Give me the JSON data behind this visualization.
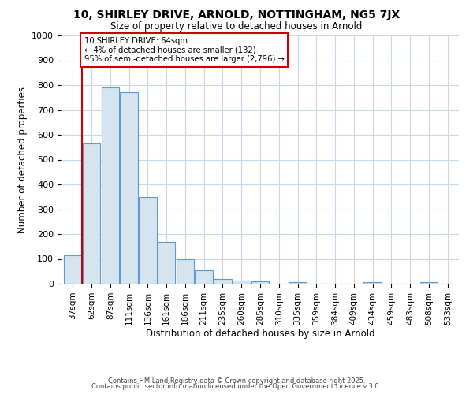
{
  "title_line1": "10, SHIRLEY DRIVE, ARNOLD, NOTTINGHAM, NG5 7JX",
  "title_line2": "Size of property relative to detached houses in Arnold",
  "xlabel": "Distribution of detached houses by size in Arnold",
  "ylabel": "Number of detached properties",
  "categories": [
    "37sqm",
    "62sqm",
    "87sqm",
    "111sqm",
    "136sqm",
    "161sqm",
    "186sqm",
    "211sqm",
    "235sqm",
    "260sqm",
    "285sqm",
    "310sqm",
    "335sqm",
    "359sqm",
    "384sqm",
    "409sqm",
    "434sqm",
    "459sqm",
    "483sqm",
    "508sqm",
    "533sqm"
  ],
  "values": [
    115,
    565,
    790,
    770,
    350,
    168,
    100,
    55,
    20,
    14,
    10,
    0,
    7,
    0,
    0,
    0,
    5,
    0,
    0,
    5,
    0
  ],
  "bar_color": "#d6e4f0",
  "bar_edge_color": "#5b9bd5",
  "red_line_x": 1,
  "annotation_text": "10 SHIRLEY DRIVE: 64sqm\n← 4% of detached houses are smaller (132)\n95% of semi-detached houses are larger (2,796) →",
  "annotation_box_color": "#cc0000",
  "ylim": [
    0,
    1000
  ],
  "yticks": [
    0,
    100,
    200,
    300,
    400,
    500,
    600,
    700,
    800,
    900,
    1000
  ],
  "bg_color": "#ffffff",
  "grid_color": "#c8d8e8",
  "footer_line1": "Contains HM Land Registry data © Crown copyright and database right 2025.",
  "footer_line2": "Contains public sector information licensed under the Open Government Licence v.3.0."
}
